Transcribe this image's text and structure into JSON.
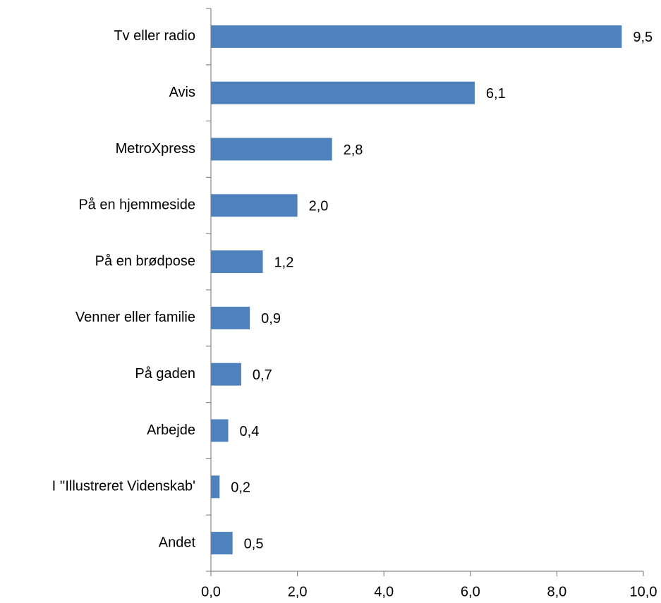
{
  "chart_data": {
    "type": "hbar",
    "categories": [
      "Tv eller radio",
      "Avis",
      "MetroXpress",
      "På en hjemmeside",
      "På en brødpose",
      "Venner eller familie",
      "På gaden",
      "Arbejde",
      "I ''Illustreret Videnskab'",
      "Andet"
    ],
    "values": [
      9.5,
      6.1,
      2.8,
      2.0,
      1.2,
      0.9,
      0.7,
      0.4,
      0.2,
      0.5
    ],
    "value_labels": [
      "9,5",
      "6,1",
      "2,8",
      "2,0",
      "1,2",
      "0,9",
      "0,7",
      "0,4",
      "0,2",
      "0,5"
    ],
    "color": "#4f81bd",
    "xlim": [
      0,
      10
    ],
    "xticks": [
      {
        "value": 0,
        "label": "0,0"
      },
      {
        "value": 2,
        "label": "2,0"
      },
      {
        "value": 4,
        "label": "4,0"
      },
      {
        "value": 6,
        "label": "6,0"
      },
      {
        "value": 8,
        "label": "8,0"
      },
      {
        "value": 10,
        "label": "10,0"
      }
    ]
  }
}
